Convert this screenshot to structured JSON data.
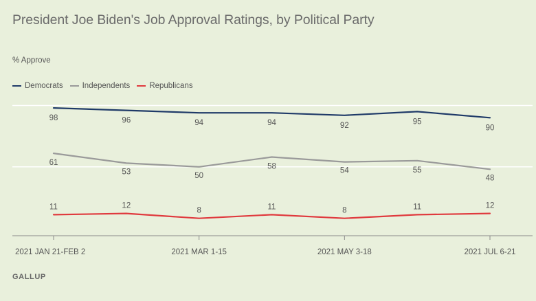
{
  "title": "President Joe Biden's Job Approval Ratings, by Political Party",
  "source": "GALLUP",
  "chart_data": {
    "type": "line",
    "ylabel": "% Approve",
    "ylim": [
      0,
      100
    ],
    "x": [
      "2021 JAN 21-FEB 2",
      "",
      "2021 MAR 1-15",
      "",
      "2021 MAY 3-18",
      "",
      "2021 JUL 6-21"
    ],
    "xtick_labels": [
      "2021 JAN 21-FEB 2",
      "2021 MAR 1-15",
      "2021 MAY 3-18",
      "2021 JUL 6-21"
    ],
    "xtick_indices": [
      0,
      2,
      4,
      6
    ],
    "series": [
      {
        "name": "Democrats",
        "color": "#1f3a68",
        "values": [
          98,
          96,
          94,
          94,
          92,
          95,
          90
        ]
      },
      {
        "name": "Independents",
        "color": "#9a9a9a",
        "values": [
          61,
          53,
          50,
          58,
          54,
          55,
          48
        ]
      },
      {
        "name": "Republicans",
        "color": "#e03a3e",
        "values": [
          11,
          12,
          8,
          11,
          8,
          11,
          12
        ]
      }
    ],
    "grid": true,
    "legend": "top-left"
  }
}
